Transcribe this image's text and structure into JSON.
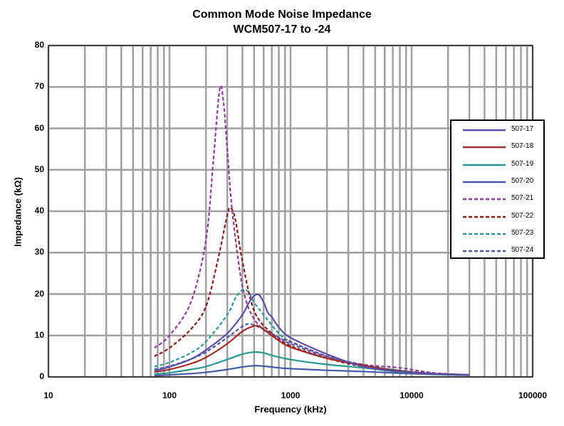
{
  "chart_data": {
    "type": "line",
    "title": "Common Mode Noise Impedance",
    "subtitle": "WCM507-17 to -24",
    "xlabel": "Frequency (kHz)",
    "ylabel": "Impedance (kΩ)",
    "x_scale": "log",
    "xlim": [
      10,
      100000
    ],
    "ylim": [
      0,
      80
    ],
    "x_ticks": [
      "10",
      "100",
      "1000",
      "10000",
      "100000"
    ],
    "y_ticks": [
      "0",
      "10",
      "20",
      "30",
      "40",
      "50",
      "60",
      "70",
      "80"
    ],
    "grid": true,
    "legend_position": "right",
    "series": [
      {
        "name": "507-17",
        "color": "#5b4ea8",
        "dash": "solid",
        "points": [
          [
            75,
            1.5
          ],
          [
            100,
            2.4
          ],
          [
            150,
            4.3
          ],
          [
            200,
            6.5
          ],
          [
            300,
            10.5
          ],
          [
            400,
            15
          ],
          [
            450,
            17.8
          ],
          [
            500,
            19.6
          ],
          [
            550,
            19.8
          ],
          [
            600,
            18
          ],
          [
            650,
            15.5
          ],
          [
            700,
            14.5
          ],
          [
            800,
            12
          ],
          [
            1000,
            9.5
          ],
          [
            2000,
            5.5
          ],
          [
            4000,
            2.5
          ],
          [
            8000,
            1.3
          ],
          [
            15000,
            0.8
          ],
          [
            30000,
            0.5
          ]
        ]
      },
      {
        "name": "507-18",
        "color": "#a52a2a",
        "dash": "solid",
        "points": [
          [
            75,
            1.2
          ],
          [
            100,
            1.8
          ],
          [
            150,
            3.2
          ],
          [
            200,
            4.7
          ],
          [
            300,
            8
          ],
          [
            400,
            11
          ],
          [
            500,
            12.3
          ],
          [
            550,
            12.2
          ],
          [
            600,
            11.5
          ],
          [
            700,
            10
          ],
          [
            800,
            8.8
          ],
          [
            1000,
            7.2
          ],
          [
            2000,
            4.5
          ],
          [
            4000,
            2.8
          ],
          [
            8000,
            1.3
          ],
          [
            15000,
            0.8
          ],
          [
            30000,
            0.5
          ]
        ]
      },
      {
        "name": "507-19",
        "color": "#2a9690",
        "dash": "solid",
        "points": [
          [
            75,
            0.7
          ],
          [
            100,
            1
          ],
          [
            150,
            1.8
          ],
          [
            200,
            2.5
          ],
          [
            300,
            4.2
          ],
          [
            400,
            5.5
          ],
          [
            500,
            6
          ],
          [
            600,
            5.8
          ],
          [
            700,
            5.2
          ],
          [
            1000,
            4.2
          ],
          [
            2000,
            3
          ],
          [
            4000,
            2.2
          ],
          [
            8000,
            1.2
          ],
          [
            15000,
            0.7
          ],
          [
            30000,
            0.4
          ]
        ]
      },
      {
        "name": "507-20",
        "color": "#4a58a8",
        "dash": "solid",
        "points": [
          [
            75,
            0.3
          ],
          [
            100,
            0.5
          ],
          [
            150,
            0.8
          ],
          [
            200,
            1.1
          ],
          [
            300,
            1.8
          ],
          [
            400,
            2.4
          ],
          [
            500,
            2.7
          ],
          [
            600,
            2.6
          ],
          [
            800,
            2.2
          ],
          [
            1000,
            2
          ],
          [
            2000,
            1.6
          ],
          [
            4000,
            1.3
          ],
          [
            8000,
            0.9
          ],
          [
            15000,
            0.6
          ],
          [
            30000,
            0.4
          ]
        ]
      },
      {
        "name": "507-21",
        "color": "#8e3c9a",
        "dash": "dashed",
        "points": [
          [
            75,
            7
          ],
          [
            100,
            10
          ],
          [
            150,
            18
          ],
          [
            200,
            33
          ],
          [
            230,
            52
          ],
          [
            260,
            69.5
          ],
          [
            280,
            66
          ],
          [
            300,
            55
          ],
          [
            330,
            40
          ],
          [
            400,
            22
          ],
          [
            500,
            14
          ],
          [
            700,
            10
          ],
          [
            1000,
            8.5
          ],
          [
            2000,
            5
          ],
          [
            4000,
            3
          ],
          [
            8000,
            2.2
          ],
          [
            15000,
            1
          ],
          [
            30000,
            0.5
          ]
        ]
      },
      {
        "name": "507-22",
        "color": "#8b1a1a",
        "dash": "dashed",
        "points": [
          [
            75,
            5
          ],
          [
            100,
            7
          ],
          [
            150,
            11.5
          ],
          [
            200,
            17
          ],
          [
            250,
            28
          ],
          [
            300,
            39
          ],
          [
            320,
            40.8
          ],
          [
            350,
            38
          ],
          [
            400,
            28
          ],
          [
            500,
            16
          ],
          [
            700,
            10.5
          ],
          [
            1000,
            7.5
          ],
          [
            2000,
            4.5
          ],
          [
            4000,
            2.5
          ],
          [
            8000,
            1.5
          ],
          [
            15000,
            0.8
          ],
          [
            30000,
            0.5
          ]
        ]
      },
      {
        "name": "507-23",
        "color": "#2a9a9a",
        "dash": "dashed",
        "points": [
          [
            75,
            2.5
          ],
          [
            100,
            3.5
          ],
          [
            150,
            5.8
          ],
          [
            200,
            8.5
          ],
          [
            300,
            15
          ],
          [
            350,
            19
          ],
          [
            400,
            21
          ],
          [
            450,
            20.5
          ],
          [
            500,
            18
          ],
          [
            600,
            15
          ],
          [
            800,
            10.5
          ],
          [
            1000,
            8.5
          ],
          [
            2000,
            5
          ],
          [
            4000,
            2.8
          ],
          [
            8000,
            1.6
          ],
          [
            15000,
            0.8
          ],
          [
            30000,
            0.5
          ]
        ]
      },
      {
        "name": "507-24",
        "color": "#4a5aa0",
        "dash": "dashed",
        "points": [
          [
            75,
            1.8
          ],
          [
            100,
            2.6
          ],
          [
            150,
            4.3
          ],
          [
            200,
            6
          ],
          [
            300,
            9.5
          ],
          [
            400,
            12.2
          ],
          [
            450,
            12.8
          ],
          [
            500,
            12.5
          ],
          [
            600,
            11.5
          ],
          [
            800,
            9.5
          ],
          [
            1000,
            8
          ],
          [
            2000,
            4.8
          ],
          [
            4000,
            2.8
          ],
          [
            8000,
            1.5
          ],
          [
            15000,
            0.8
          ],
          [
            30000,
            0.5
          ]
        ]
      }
    ]
  }
}
